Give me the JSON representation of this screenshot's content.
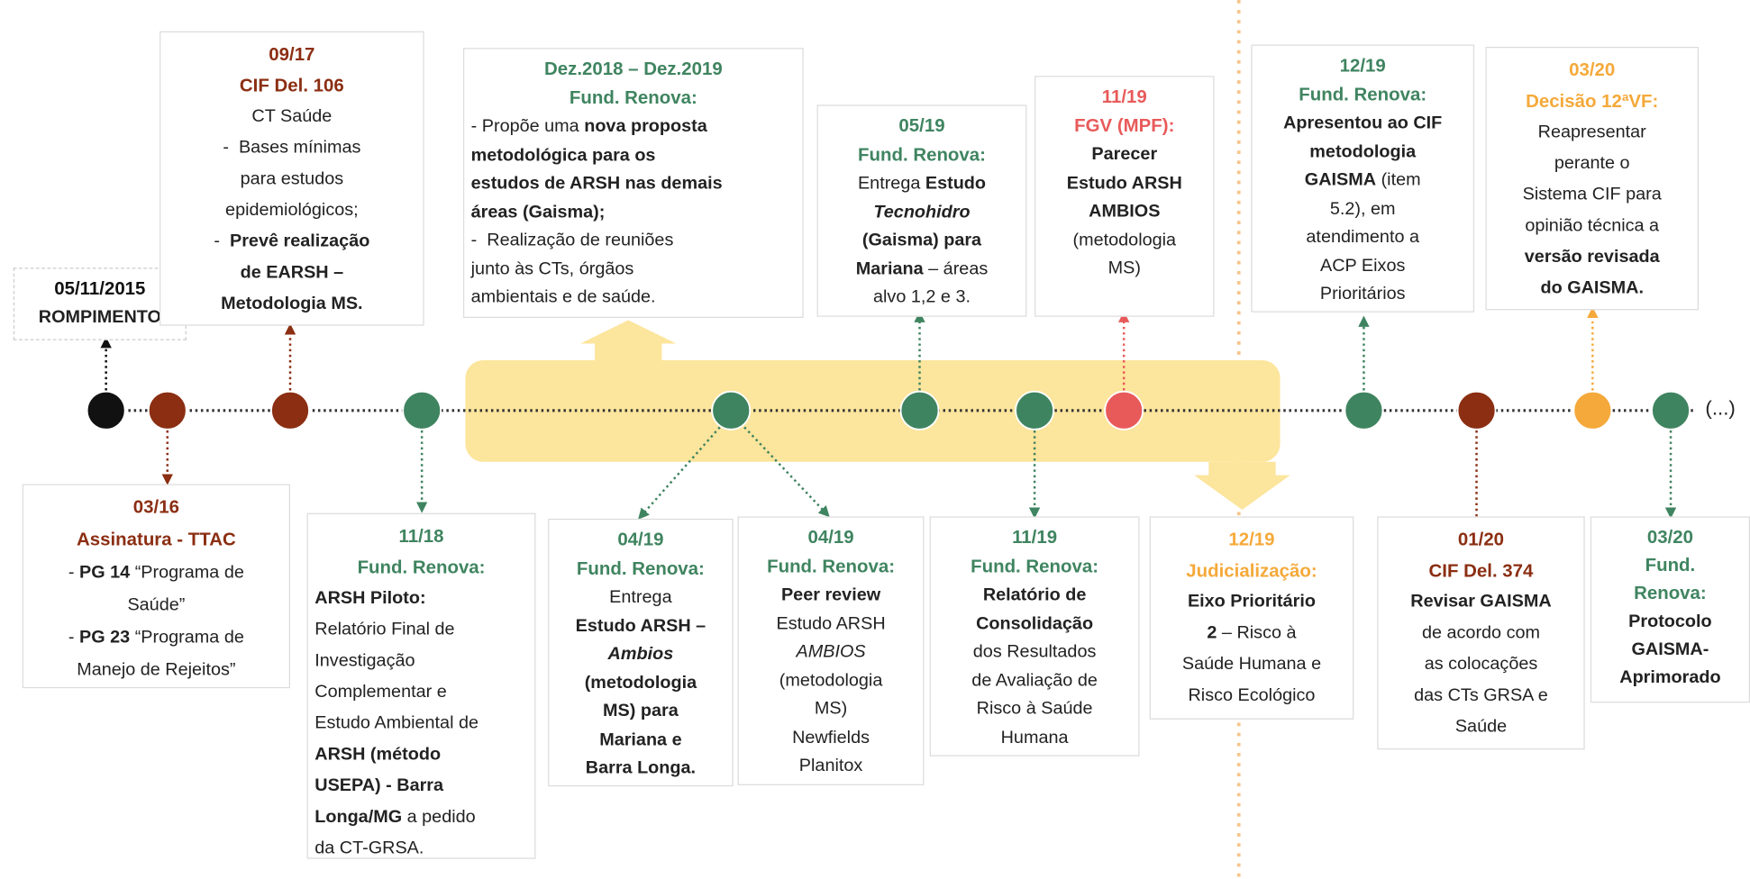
{
  "boxes": [
    {
      "head": [
        "05/11/2015"
      ],
      "lines": [
        [
          {
            "b": "ROMPIMENTO"
          }
        ]
      ]
    },
    {
      "head": [
        "09/17",
        "CIF Del. 106"
      ],
      "lines": [
        [
          "CT Saúde"
        ],
        [
          "-  Bases mínimas"
        ],
        [
          "para estudos"
        ],
        [
          "epidemiológicos;"
        ],
        [
          "-  ",
          {
            "b": "Prevê realização"
          }
        ],
        [
          {
            "b": "de EARSH –"
          }
        ],
        [
          {
            "b": "Metodologia MS."
          }
        ]
      ]
    },
    {
      "head": [
        "Dez.2018 – Dez.2019",
        "Fund. Renova:"
      ],
      "lines": [
        [
          "- Propõe uma ",
          {
            "b": "nova proposta"
          }
        ],
        [
          {
            "b": "metodológica para os"
          }
        ],
        [
          {
            "b": "estudos de ARSH nas demais"
          }
        ],
        [
          {
            "b": "áreas (Gaisma);"
          }
        ],
        [
          "-  Realização de reuniões"
        ],
        [
          "junto às CTs, órgãos"
        ],
        [
          "ambientais e de saúde."
        ]
      ]
    },
    {
      "head": [
        "05/19",
        "Fund. Renova:"
      ],
      "lines": [
        [
          "Entrega ",
          {
            "b": "Estudo"
          }
        ],
        [
          {
            "bi": "Tecnohidro"
          }
        ],
        [
          {
            "b": "(Gaisma) para"
          }
        ],
        [
          {
            "b": "Mariana"
          },
          " – áreas"
        ],
        [
          "alvo 1,2 e 3."
        ]
      ]
    },
    {
      "head": [
        "11/19",
        "FGV (MPF):"
      ],
      "lines": [
        [
          {
            "b": "Parecer"
          }
        ],
        [
          {
            "b": "Estudo ARSH"
          }
        ],
        [
          {
            "b": "AMBIOS"
          }
        ],
        [
          "(metodologia"
        ],
        [
          "MS)"
        ]
      ]
    },
    {
      "head": [
        "12/19",
        "Fund. Renova:"
      ],
      "lines": [
        [
          {
            "b": "Apresentou ao CIF"
          }
        ],
        [
          {
            "b": "metodologia"
          }
        ],
        [
          {
            "b": "GAISMA"
          },
          " (item"
        ],
        [
          "5.2), em"
        ],
        [
          "atendimento a"
        ],
        [
          "ACP Eixos"
        ],
        [
          "Prioritários"
        ]
      ]
    },
    {
      "head": [
        "03/20",
        "Decisão 12ªVF:"
      ],
      "lines": [
        [
          "Reapresentar"
        ],
        [
          "perante o"
        ],
        [
          "Sistema CIF para"
        ],
        [
          "opinião técnica a"
        ],
        [
          {
            "b": "versão revisada"
          }
        ],
        [
          {
            "b": "do GAISMA."
          }
        ]
      ]
    },
    {
      "head": [
        "03/16",
        "Assinatura - TTAC"
      ],
      "lines": [
        [
          "- ",
          {
            "b": "PG 14"
          },
          " “Programa de"
        ],
        [
          "Saúde”"
        ],
        [
          "- ",
          {
            "b": "PG 23"
          },
          " “Programa de"
        ],
        [
          "Manejo de Rejeitos”"
        ]
      ]
    },
    {
      "head": [
        "11/18",
        "Fund. Renova:"
      ],
      "lines": [
        [
          {
            "b": "ARSH Piloto:"
          }
        ],
        [
          "Relatório Final de"
        ],
        [
          "Investigação"
        ],
        [
          "Complementar e"
        ],
        [
          "Estudo Ambiental de"
        ],
        [
          {
            "b": "ARSH (método"
          }
        ],
        [
          {
            "b": "USEPA) - Barra"
          }
        ],
        [
          {
            "b": "Longa/MG"
          },
          " a pedido"
        ],
        [
          "da CT-GRSA."
        ]
      ]
    },
    {
      "head": [
        "04/19",
        "Fund. Renova:"
      ],
      "lines": [
        [
          "Entrega"
        ],
        [
          {
            "b": "Estudo ARSH –"
          }
        ],
        [
          {
            "bi": "Ambios"
          }
        ],
        [
          {
            "b": "(metodologia"
          }
        ],
        [
          {
            "b": "MS) para"
          }
        ],
        [
          {
            "b": "Mariana e"
          }
        ],
        [
          {
            "b": "Barra Longa."
          }
        ]
      ]
    },
    {
      "head": [
        "04/19",
        "Fund. Renova:"
      ],
      "lines": [
        [
          {
            "b": "Peer review"
          }
        ],
        [
          "Estudo ARSH"
        ],
        [
          {
            "i": "AMBIOS"
          }
        ],
        [
          "(metodologia"
        ],
        [
          "MS)"
        ],
        [
          "Newfields"
        ],
        [
          "Planitox"
        ]
      ]
    },
    {
      "head": [
        "11/19",
        "Fund. Renova:"
      ],
      "lines": [
        [
          {
            "b": "Relatório de"
          }
        ],
        [
          {
            "b": "Consolidação"
          }
        ],
        [
          "dos Resultados"
        ],
        [
          "de Avaliação de"
        ],
        [
          "Risco à Saúde"
        ],
        [
          "Humana"
        ]
      ]
    },
    {
      "head": [
        "12/19",
        "Judicialização:"
      ],
      "lines": [
        [
          {
            "b": "Eixo Prioritário"
          }
        ],
        [
          {
            "b": "2"
          },
          " – Risco à"
        ],
        [
          "Saúde Humana e"
        ],
        [
          "Risco Ecológico"
        ]
      ]
    },
    {
      "head": [
        "01/20",
        "CIF Del. 374"
      ],
      "lines": [
        [
          {
            "b": "Revisar GAISMA"
          }
        ],
        [
          "de acordo com"
        ],
        [
          "as colocações"
        ],
        [
          "das CTs GRSA e"
        ],
        [
          "Saúde"
        ]
      ]
    },
    {
      "head": [
        "03/20",
        "Fund.",
        "Renova:"
      ],
      "lines": [
        [
          {
            "b": "Protocolo"
          }
        ],
        [
          {
            "b": "GAISMA-"
          }
        ],
        [
          {
            "b": "Aprimorado"
          }
        ]
      ]
    }
  ],
  "continuation": "(...)"
}
